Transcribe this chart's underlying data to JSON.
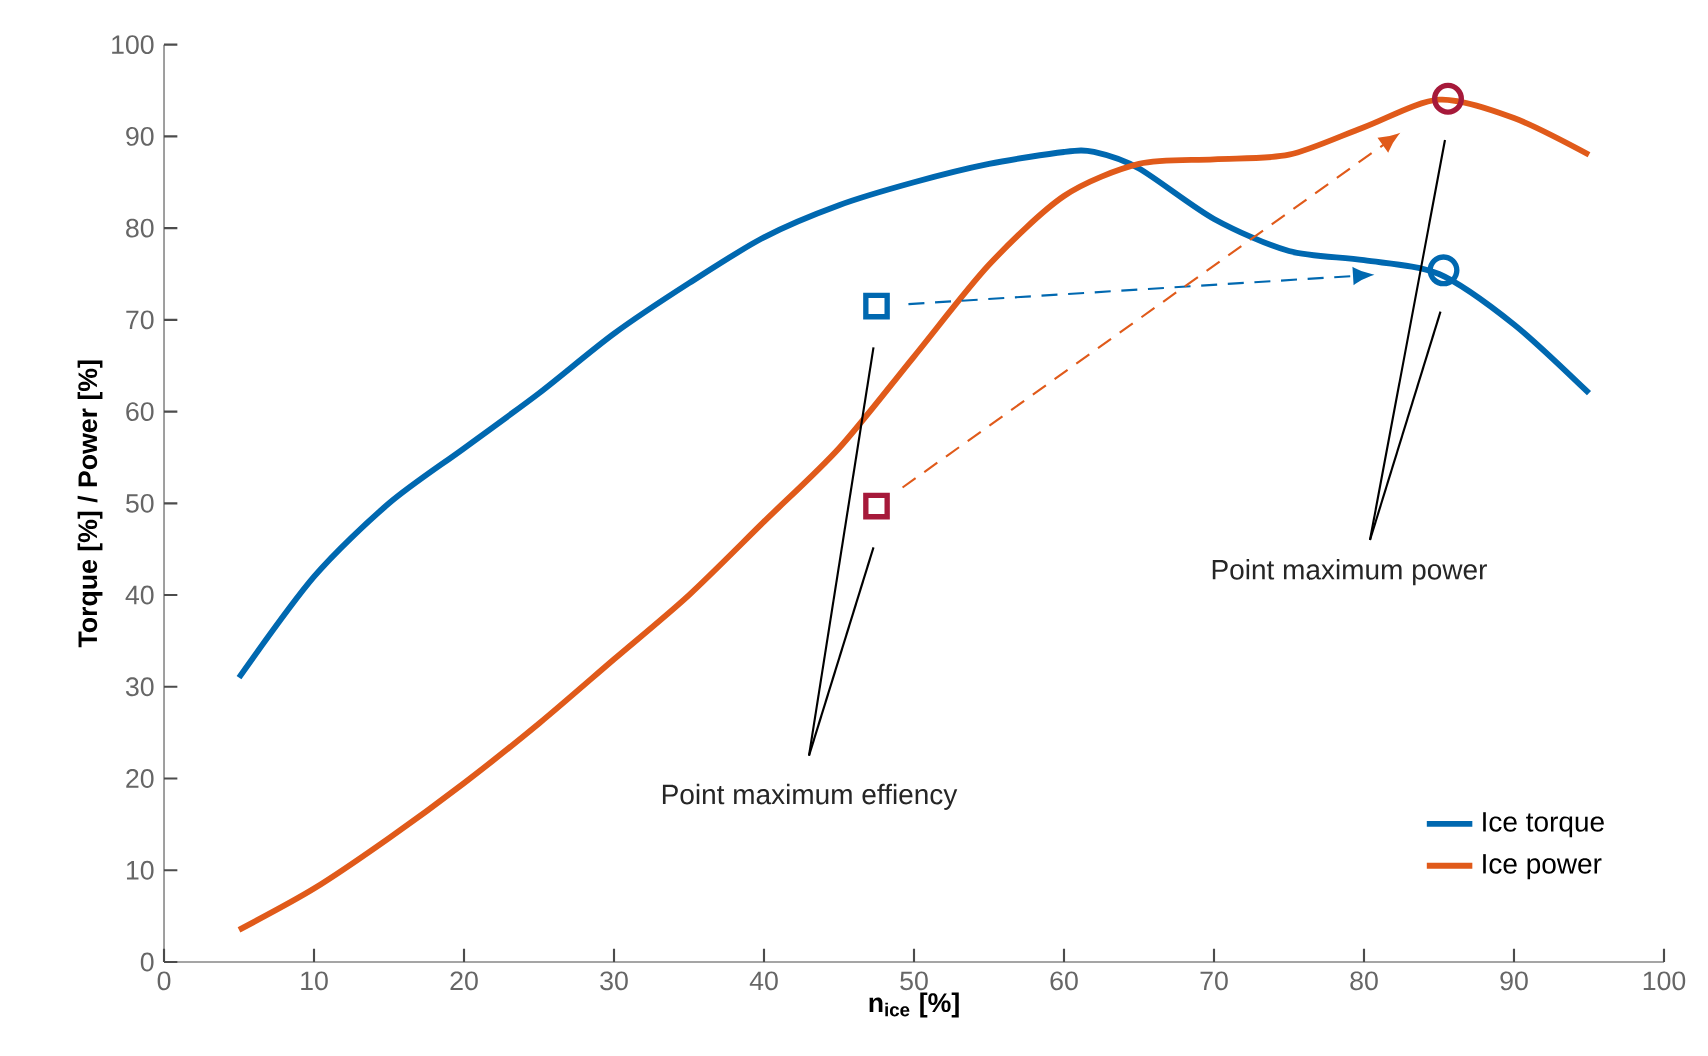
{
  "chart_data": {
    "type": "line",
    "xlabel": "n$_{ice}$ [%]",
    "ylabel": "Torque [%] / Power [%]",
    "xlim": [
      0,
      100
    ],
    "ylim": [
      0,
      100
    ],
    "xticks": [
      0,
      10,
      20,
      30,
      40,
      50,
      60,
      70,
      80,
      90,
      100
    ],
    "yticks": [
      0,
      10,
      20,
      30,
      40,
      50,
      60,
      70,
      80,
      90,
      100
    ],
    "grid": false,
    "legend": "bottom right",
    "annotations": [
      "Point maximum effiency",
      "Point maximum power"
    ],
    "series": [
      {
        "name": "Ice torque",
        "color": "#0068b0",
        "line_style": "solid",
        "x": [
          5,
          10,
          15,
          20,
          25,
          30,
          35,
          40,
          45,
          50,
          55,
          60,
          62,
          65,
          70,
          75,
          80,
          85,
          90,
          95
        ],
        "values": [
          31,
          42,
          50,
          56,
          62,
          68.5,
          74,
          79,
          82.5,
          85,
          87,
          88.3,
          88.3,
          86.5,
          81,
          77.5,
          76.5,
          75,
          69.5,
          62
        ]
      },
      {
        "name": "Ice power",
        "color": "#e05a1a",
        "line_style": "solid",
        "x": [
          5,
          10,
          15,
          20,
          25,
          30,
          35,
          40,
          45,
          50,
          55,
          60,
          65,
          70,
          75,
          80,
          85,
          90,
          95
        ],
        "values": [
          3.5,
          8,
          13.5,
          19.5,
          26,
          33,
          40,
          48,
          56,
          66,
          76,
          83.5,
          87,
          87.5,
          88,
          91,
          94,
          92,
          88
        ]
      },
      {
        "type": "scatter",
        "marker": "square",
        "color": "#0068b0",
        "x": [
          47.5
        ],
        "values": [
          71.5
        ]
      },
      {
        "type": "scatter",
        "marker": "square",
        "color": "#a6193a",
        "x": [
          47.5
        ],
        "values": [
          49.7
        ]
      },
      {
        "type": "scatter",
        "marker": "circle",
        "color": "#0068b0",
        "x": [
          85.3
        ],
        "values": [
          75.4
        ]
      },
      {
        "type": "scatter",
        "marker": "circle",
        "color": "#a6193a",
        "x": [
          85.6
        ],
        "values": [
          94.1
        ]
      }
    ]
  }
}
